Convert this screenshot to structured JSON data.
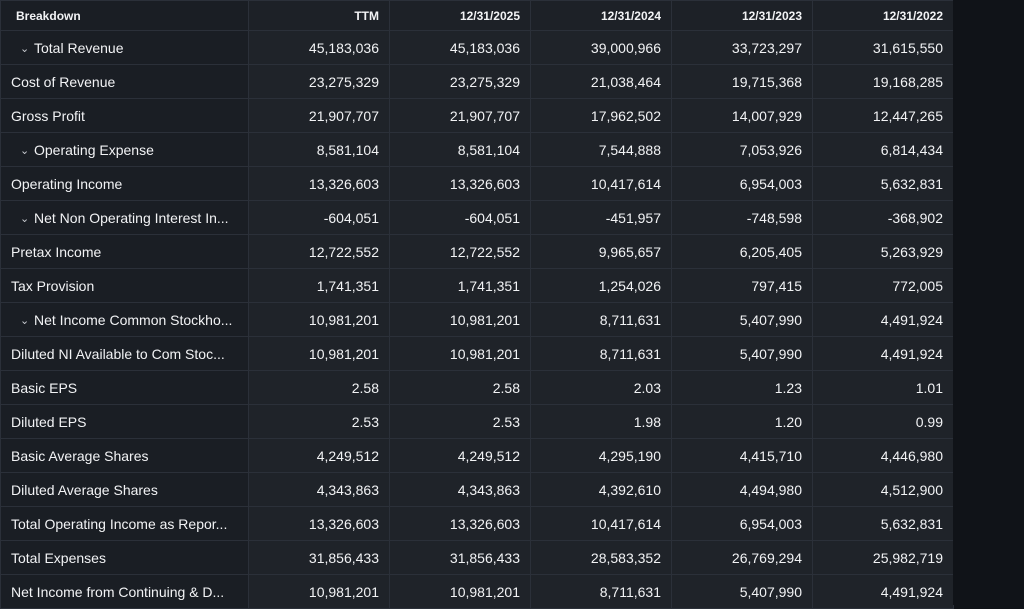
{
  "table": {
    "headers": [
      "Breakdown",
      "TTM",
      "12/31/2025",
      "12/31/2024",
      "12/31/2023",
      "12/31/2022"
    ],
    "rows": [
      {
        "label": "Total Revenue",
        "expandable": true,
        "values": [
          "45,183,036",
          "45,183,036",
          "39,000,966",
          "33,723,297",
          "31,615,550"
        ]
      },
      {
        "label": "Cost of Revenue",
        "expandable": false,
        "values": [
          "23,275,329",
          "23,275,329",
          "21,038,464",
          "19,715,368",
          "19,168,285"
        ]
      },
      {
        "label": "Gross Profit",
        "expandable": false,
        "values": [
          "21,907,707",
          "21,907,707",
          "17,962,502",
          "14,007,929",
          "12,447,265"
        ]
      },
      {
        "label": "Operating Expense",
        "expandable": true,
        "values": [
          "8,581,104",
          "8,581,104",
          "7,544,888",
          "7,053,926",
          "6,814,434"
        ]
      },
      {
        "label": "Operating Income",
        "expandable": false,
        "values": [
          "13,326,603",
          "13,326,603",
          "10,417,614",
          "6,954,003",
          "5,632,831"
        ]
      },
      {
        "label": "Net Non Operating Interest In...",
        "expandable": true,
        "values": [
          "-604,051",
          "-604,051",
          "-451,957",
          "-748,598",
          "-368,902"
        ]
      },
      {
        "label": "Pretax Income",
        "expandable": false,
        "values": [
          "12,722,552",
          "12,722,552",
          "9,965,657",
          "6,205,405",
          "5,263,929"
        ]
      },
      {
        "label": "Tax Provision",
        "expandable": false,
        "values": [
          "1,741,351",
          "1,741,351",
          "1,254,026",
          "797,415",
          "772,005"
        ]
      },
      {
        "label": "Net Income Common Stockho...",
        "expandable": true,
        "values": [
          "10,981,201",
          "10,981,201",
          "8,711,631",
          "5,407,990",
          "4,491,924"
        ]
      },
      {
        "label": "Diluted NI Available to Com Stoc...",
        "expandable": false,
        "values": [
          "10,981,201",
          "10,981,201",
          "8,711,631",
          "5,407,990",
          "4,491,924"
        ]
      },
      {
        "label": "Basic EPS",
        "expandable": false,
        "values": [
          "2.58",
          "2.58",
          "2.03",
          "1.23",
          "1.01"
        ]
      },
      {
        "label": "Diluted EPS",
        "expandable": false,
        "values": [
          "2.53",
          "2.53",
          "1.98",
          "1.20",
          "0.99"
        ]
      },
      {
        "label": "Basic Average Shares",
        "expandable": false,
        "values": [
          "4,249,512",
          "4,249,512",
          "4,295,190",
          "4,415,710",
          "4,446,980"
        ]
      },
      {
        "label": "Diluted Average Shares",
        "expandable": false,
        "values": [
          "4,343,863",
          "4,343,863",
          "4,392,610",
          "4,494,980",
          "4,512,900"
        ]
      },
      {
        "label": "Total Operating Income as Repor...",
        "expandable": false,
        "values": [
          "13,326,603",
          "13,326,603",
          "10,417,614",
          "6,954,003",
          "5,632,831"
        ]
      },
      {
        "label": "Total Expenses",
        "expandable": false,
        "values": [
          "31,856,433",
          "31,856,433",
          "28,583,352",
          "26,769,294",
          "25,982,719"
        ]
      },
      {
        "label": "Net Income from Continuing & D...",
        "expandable": false,
        "values": [
          "10,981,201",
          "10,981,201",
          "8,711,631",
          "5,407,990",
          "4,491,924"
        ]
      }
    ]
  },
  "icons": {
    "expand": "chevron-down-icon"
  },
  "colors": {
    "background": "#101318",
    "header_bg": "#1d2127",
    "label_bg": "#1a1e24",
    "cell_bg": "#1f2329",
    "border": "#2b3039",
    "text": "#f2f3f5"
  }
}
